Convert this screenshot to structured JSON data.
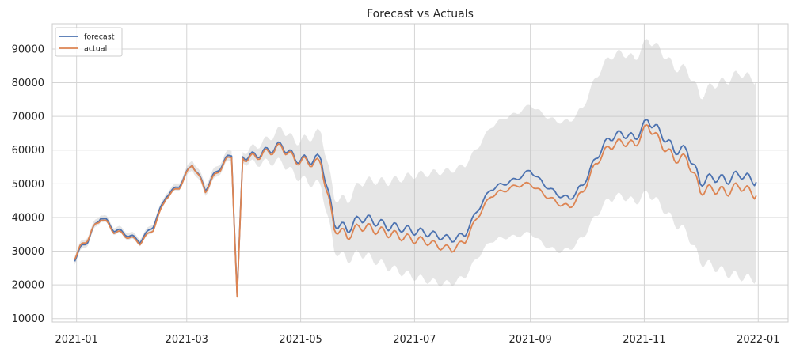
{
  "chart_data": {
    "type": "line",
    "title": "Forecast vs Actuals",
    "xlabel": "",
    "ylabel": "",
    "x_range": [
      "2020-12-19",
      "2022-01-17"
    ],
    "ylim": [
      9000,
      97500
    ],
    "x_ticks": [
      "2021-01-01",
      "2021-03-01",
      "2021-05-01",
      "2021-07-01",
      "2021-09-01",
      "2021-11-01",
      "2022-01-01"
    ],
    "x_tick_labels": [
      "2021-01",
      "2021-03",
      "2021-05",
      "2021-07",
      "2021-09",
      "2021-11",
      "2022-01"
    ],
    "y_ticks": [
      10000,
      20000,
      30000,
      40000,
      50000,
      60000,
      70000,
      80000,
      90000
    ],
    "y_tick_labels": [
      "10000",
      "20000",
      "30000",
      "40000",
      "50000",
      "60000",
      "70000",
      "80000",
      "90000"
    ],
    "grid": true,
    "legend": "top-left",
    "colors": {
      "forecast": "#4c72b0",
      "actual": "#dd8452",
      "band": "#bdbdbd",
      "grid": "#d5d5d5",
      "frame": "#cccccc"
    },
    "x": [
      "2020-12-31",
      "2021-01-07",
      "2021-01-14",
      "2021-01-21",
      "2021-01-28",
      "2021-02-04",
      "2021-02-11",
      "2021-02-18",
      "2021-02-25",
      "2021-03-04",
      "2021-03-11",
      "2021-03-18",
      "2021-03-25",
      "2021-03-28",
      "2021-03-31",
      "2021-04-07",
      "2021-04-14",
      "2021-04-21",
      "2021-04-28",
      "2021-05-05",
      "2021-05-12",
      "2021-05-19",
      "2021-05-26",
      "2021-06-02",
      "2021-06-09",
      "2021-06-16",
      "2021-06-23",
      "2021-06-30",
      "2021-07-07",
      "2021-07-14",
      "2021-07-21",
      "2021-07-28",
      "2021-08-04",
      "2021-08-11",
      "2021-08-18",
      "2021-08-25",
      "2021-09-01",
      "2021-09-08",
      "2021-09-15",
      "2021-09-22",
      "2021-09-29",
      "2021-10-06",
      "2021-10-13",
      "2021-10-20",
      "2021-10-27",
      "2021-11-03",
      "2021-11-10",
      "2021-11-17",
      "2021-11-24",
      "2021-12-01",
      "2021-12-08",
      "2021-12-15",
      "2021-12-22",
      "2021-12-31"
    ],
    "series": [
      {
        "name": "forecast",
        "values": [
          28000,
          33500,
          40500,
          36500,
          35000,
          33000,
          37500,
          46500,
          49500,
          56000,
          48500,
          54500,
          59000,
          16500,
          58000,
          58500,
          60000,
          61500,
          57500,
          57000,
          57500,
          38500,
          36500,
          40000,
          39000,
          37500,
          37000,
          36000,
          35500,
          34500,
          33500,
          35000,
          42500,
          48500,
          50000,
          51500,
          54000,
          50000,
          47000,
          45500,
          49500,
          57500,
          63500,
          65000,
          63500,
          69000,
          65000,
          60000,
          60000,
          50500,
          52000,
          51000,
          53000,
          50500
        ]
      },
      {
        "name": "actual",
        "values": [
          28500,
          34000,
          40000,
          36000,
          34500,
          32500,
          36500,
          46000,
          49000,
          56000,
          48000,
          54000,
          58500,
          16000,
          57500,
          58000,
          59500,
          61000,
          57000,
          56500,
          56000,
          37000,
          34500,
          37500,
          36500,
          35500,
          34500,
          33500,
          33000,
          31500,
          30500,
          33000,
          40500,
          46500,
          48000,
          49500,
          50000,
          47000,
          44500,
          43000,
          47500,
          56000,
          61000,
          62500,
          61500,
          67500,
          62000,
          57500,
          57500,
          48000,
          48500,
          47500,
          49500,
          46500
        ]
      }
    ],
    "band": {
      "lower": [
        27000,
        32500,
        39500,
        35500,
        34000,
        32000,
        36000,
        45500,
        48500,
        54500,
        47000,
        53000,
        57500,
        15500,
        56500,
        56000,
        56500,
        56500,
        52500,
        50500,
        49500,
        30500,
        27500,
        29500,
        27500,
        25500,
        24000,
        22500,
        21500,
        20500,
        20500,
        22500,
        28500,
        33000,
        34000,
        34500,
        35500,
        32000,
        30000,
        30500,
        34000,
        40500,
        45500,
        46500,
        44500,
        47500,
        43500,
        38500,
        35500,
        27000,
        25500,
        23500,
        22500,
        21500
      ],
      "upper": [
        29500,
        35000,
        41500,
        37500,
        36000,
        34000,
        38500,
        47500,
        50500,
        57500,
        50000,
        56000,
        60500,
        17000,
        59500,
        61000,
        63500,
        66500,
        62500,
        63500,
        65500,
        46000,
        45000,
        50500,
        51000,
        50500,
        51500,
        52500,
        53000,
        53500,
        54000,
        55500,
        61000,
        67000,
        69500,
        71000,
        73500,
        70500,
        68500,
        68500,
        72500,
        81500,
        87500,
        89000,
        87000,
        93000,
        89500,
        84500,
        84000,
        76000,
        79500,
        80500,
        83000,
        80500
      ]
    }
  }
}
